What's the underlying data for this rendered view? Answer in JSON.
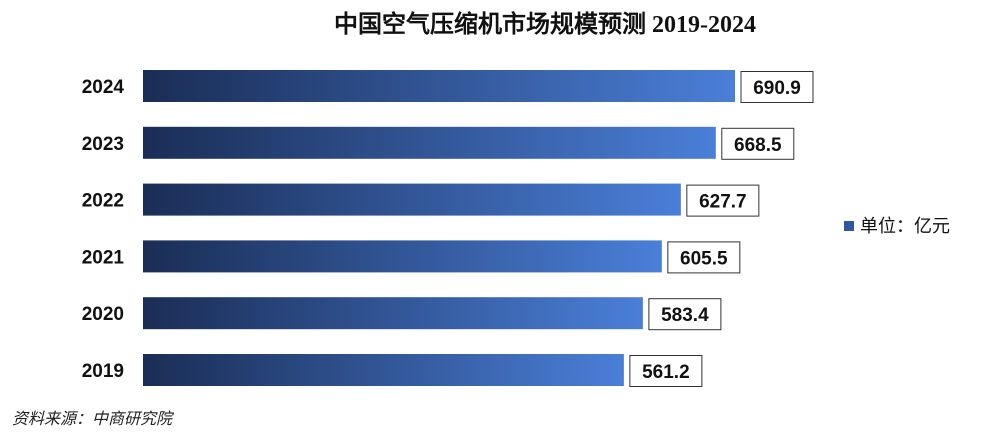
{
  "chart_data": {
    "type": "bar",
    "orientation": "horizontal",
    "title": "中国空气压缩机市场规模预测 2019-2024",
    "categories": [
      "2024",
      "2023",
      "2022",
      "2021",
      "2020",
      "2019"
    ],
    "series": [
      {
        "name": "单位：亿元",
        "values": [
          690.9,
          668.5,
          627.7,
          605.5,
          583.4,
          561.2
        ]
      }
    ],
    "value_labels": [
      "690.9",
      "668.5",
      "627.7",
      "605.5",
      "583.4",
      "561.2"
    ],
    "xlim": [
      0,
      700
    ],
    "xlabel": "",
    "ylabel": "",
    "grid": false,
    "legend_position": "right",
    "colors": {
      "bar_start": "#1a2d55",
      "bar_end": "#4a7fd8",
      "legend_swatch": "#2f56a0"
    }
  },
  "source": "资料来源：中商研究院"
}
